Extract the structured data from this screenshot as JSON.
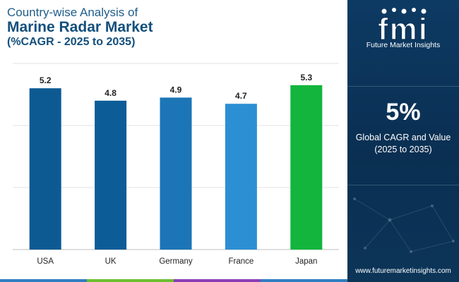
{
  "title": {
    "line1": "Country-wise Analysis of",
    "line2": "Marine Radar Market",
    "line3": "(%CAGR - 2025 to 2035)"
  },
  "chart_data": {
    "type": "bar",
    "categories": [
      "USA",
      "UK",
      "Germany",
      "France",
      "Japan"
    ],
    "values": [
      5.2,
      4.8,
      4.9,
      4.7,
      5.3
    ],
    "bar_colors": [
      "#0d5a93",
      "#0c5c98",
      "#1b75b6",
      "#2d8fd3",
      "#13b53c"
    ],
    "ylim": [
      0,
      6
    ],
    "grid": true,
    "xlabel": "",
    "ylabel": ""
  },
  "side_panel": {
    "logo_text": "fmi",
    "logo_subtitle": "Future Market Insights",
    "cagr_value": "5%",
    "cagr_label_line1": "Global CAGR and Value",
    "cagr_label_line2": "(2025 to 2035)",
    "website": "www.futuremarketinsights.com",
    "background_color": "#0b3459"
  },
  "bottom_strip_colors": [
    "#2f7fc0",
    "#6cbf2f",
    "#8a3fb4",
    "#2f7fc0"
  ]
}
